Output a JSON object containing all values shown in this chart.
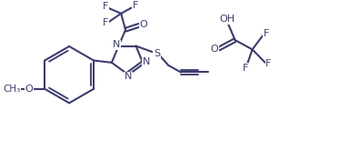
{
  "bg_color": "#ffffff",
  "line_color": "#3c3c6e",
  "line_width": 1.5,
  "font_size": 8.0,
  "fig_width": 3.95,
  "fig_height": 1.76,
  "dpi": 100,
  "xlim": [
    0,
    10
  ],
  "ylim": [
    0,
    4.5
  ]
}
